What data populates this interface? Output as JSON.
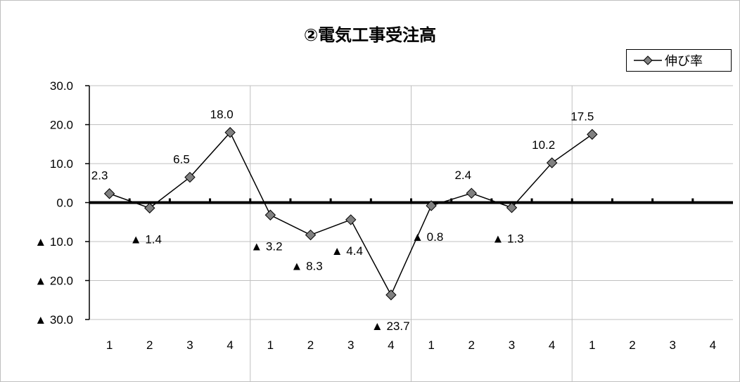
{
  "chart_data": {
    "type": "line",
    "title": "②電気工事受注高",
    "legend": "伸び率",
    "legend_position": "top-right",
    "x": [
      "1",
      "2",
      "3",
      "4",
      "1",
      "2",
      "3",
      "4",
      "1",
      "2",
      "3",
      "4",
      "1",
      "2",
      "3",
      "4"
    ],
    "series": [
      {
        "name": "伸び率",
        "values": [
          2.3,
          -1.4,
          6.5,
          18.0,
          -3.2,
          -8.3,
          -4.4,
          -23.7,
          -0.8,
          2.4,
          -1.3,
          10.2,
          17.5,
          null,
          null,
          null
        ]
      }
    ],
    "data_labels": [
      "2.3",
      "▲ 1.4",
      "6.5",
      "18.0",
      "▲ 3.2",
      "▲ 8.3",
      "▲ 4.4",
      "▲ 23.7",
      "▲ 0.8",
      "2.4",
      "▲ 1.3",
      "10.2",
      "17.5",
      "",
      "",
      ""
    ],
    "y_ticks": [
      "30.0",
      "20.0",
      "10.0",
      "0.0",
      "▲ 10.0",
      "▲ 20.0",
      "▲ 30.0"
    ],
    "ylim": [
      -30,
      30
    ],
    "colors": {
      "line": "#000000",
      "marker": "#808080",
      "grid": "#c0c0c0"
    }
  }
}
